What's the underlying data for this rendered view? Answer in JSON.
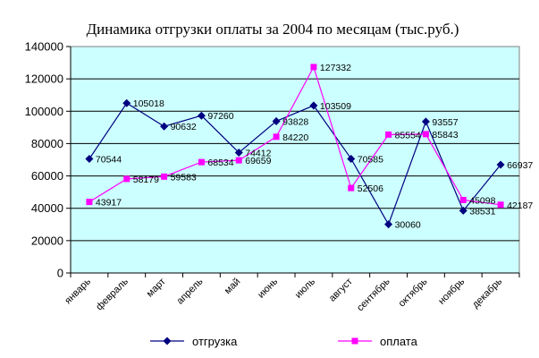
{
  "chart_data": {
    "type": "line",
    "title": "Динамика отгрузки оплаты за 2004 по месяцам (тыс.руб.)",
    "xlabel": "",
    "ylabel": "",
    "categories": [
      "январь",
      "февраль",
      "март",
      "апрель",
      "май",
      "июнь",
      "июль",
      "август",
      "сентябрь",
      "октябрь",
      "ноябрь",
      "декабрь"
    ],
    "ylim": [
      0,
      140000
    ],
    "yticks": [
      "0",
      "20000",
      "40000",
      "60000",
      "80000",
      "100000",
      "120000",
      "140000"
    ],
    "grid": true,
    "legend_position": "bottom",
    "plot_background": "#ccffff",
    "series": [
      {
        "name": "отгрузка",
        "color": "#000080",
        "marker": "diamond",
        "values": [
          70544,
          105018,
          90632,
          97260,
          74412,
          93828,
          103509,
          70585,
          30060,
          93557,
          38531,
          66937
        ]
      },
      {
        "name": "оплата",
        "color": "#ff00ff",
        "marker": "square",
        "values": [
          43917,
          58179,
          59583,
          68534,
          69659,
          84220,
          127332,
          52506,
          85554,
          85843,
          45098,
          42187
        ]
      }
    ]
  }
}
